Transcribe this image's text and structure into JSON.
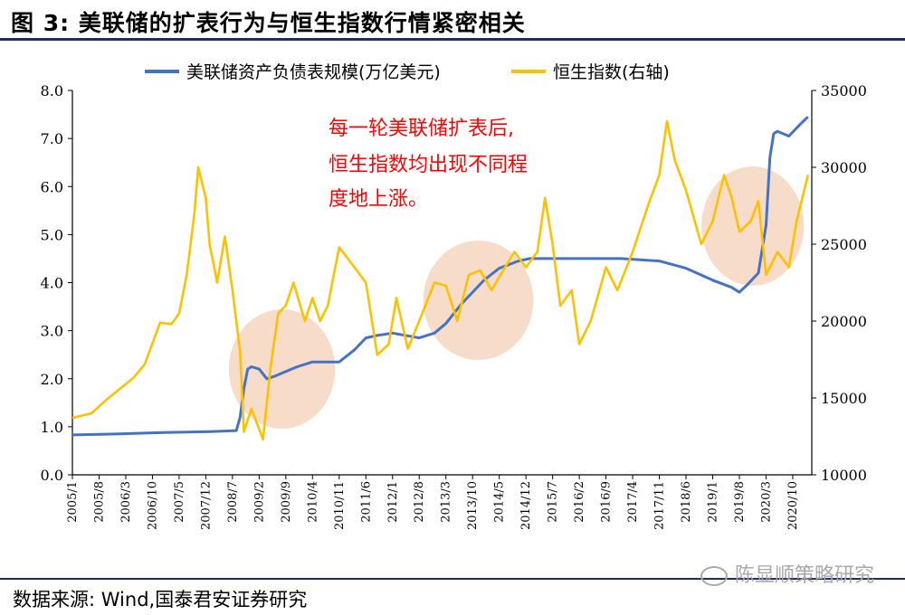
{
  "figure": {
    "title": "图 3: 美联储的扩表行为与恒生指数行情紧密相关",
    "source": "数据来源: Wind,国泰君安证券研究",
    "watermark": "陈显顺策略研究"
  },
  "chart_data": {
    "type": "line",
    "colors": {
      "fed": "#4472c4",
      "hsi": "#ffc000",
      "highlight": "#f4c9ad",
      "annotation": "#ff0000"
    },
    "legend_position": "top",
    "grid": false,
    "y_left": {
      "ylim": [
        0,
        8
      ],
      "ticks": [
        "0.0",
        "1.0",
        "2.0",
        "3.0",
        "4.0",
        "5.0",
        "6.0",
        "7.0",
        "8.0"
      ]
    },
    "y_right": {
      "ylim": [
        10000,
        35000
      ],
      "ticks": [
        "10000",
        "15000",
        "20000",
        "25000",
        "30000",
        "35000"
      ]
    },
    "x_ticks": [
      "2005/1",
      "2005/8",
      "2006/3",
      "2006/10",
      "2007/5",
      "2007/12",
      "2008/7",
      "2009/2",
      "2009/9",
      "2010/4",
      "2010/11",
      "2011/6",
      "2012/1",
      "2012/8",
      "2013/3",
      "2013/10",
      "2014/5",
      "2014/12",
      "2015/7",
      "2016/2",
      "2016/9",
      "2017/4",
      "2017/11",
      "2018/6",
      "2019/1",
      "2019/8",
      "2020/3",
      "2020/10"
    ],
    "annotation": [
      "每一轮美联储扩表后,",
      "恒生指数均出现不同程",
      "度地上涨。"
    ],
    "highlights": [
      {
        "start": "2008/7",
        "end": "2010/9"
      },
      {
        "start": "2012/10",
        "end": "2015/1"
      },
      {
        "start": "2018/11",
        "end": "2020/12"
      }
    ],
    "series": [
      {
        "name": "美联储资产负债表规模(万亿美元)",
        "axis": "left",
        "points": [
          [
            "2005/1",
            0.83
          ],
          [
            "2006/1",
            0.85
          ],
          [
            "2007/1",
            0.88
          ],
          [
            "2008/1",
            0.9
          ],
          [
            "2008/8",
            0.92
          ],
          [
            "2008/9",
            1.2
          ],
          [
            "2008/10",
            1.8
          ],
          [
            "2008/11",
            2.2
          ],
          [
            "2008/12",
            2.25
          ],
          [
            "2009/2",
            2.2
          ],
          [
            "2009/4",
            2.0
          ],
          [
            "2009/6",
            2.05
          ],
          [
            "2009/9",
            2.15
          ],
          [
            "2009/12",
            2.25
          ],
          [
            "2010/4",
            2.35
          ],
          [
            "2010/11",
            2.35
          ],
          [
            "2011/3",
            2.6
          ],
          [
            "2011/6",
            2.85
          ],
          [
            "2011/9",
            2.9
          ],
          [
            "2012/1",
            2.95
          ],
          [
            "2012/8",
            2.85
          ],
          [
            "2012/12",
            2.95
          ],
          [
            "2013/3",
            3.15
          ],
          [
            "2013/7",
            3.55
          ],
          [
            "2013/10",
            3.8
          ],
          [
            "2014/1",
            4.05
          ],
          [
            "2014/5",
            4.3
          ],
          [
            "2014/10",
            4.45
          ],
          [
            "2015/1",
            4.5
          ],
          [
            "2016/1",
            4.5
          ],
          [
            "2017/1",
            4.5
          ],
          [
            "2017/11",
            4.45
          ],
          [
            "2018/6",
            4.3
          ],
          [
            "2019/1",
            4.05
          ],
          [
            "2019/6",
            3.9
          ],
          [
            "2019/8",
            3.8
          ],
          [
            "2019/10",
            3.95
          ],
          [
            "2020/1",
            4.2
          ],
          [
            "2020/3",
            5.2
          ],
          [
            "2020/4",
            6.6
          ],
          [
            "2020/5",
            7.1
          ],
          [
            "2020/6",
            7.15
          ],
          [
            "2020/9",
            7.05
          ],
          [
            "2020/12",
            7.3
          ],
          [
            "2021/2",
            7.45
          ]
        ]
      },
      {
        "name": "恒生指数(右轴)",
        "axis": "right",
        "points": [
          [
            "2005/1",
            13700
          ],
          [
            "2005/6",
            14000
          ],
          [
            "2005/10",
            14900
          ],
          [
            "2006/1",
            15500
          ],
          [
            "2006/5",
            16300
          ],
          [
            "2006/8",
            17200
          ],
          [
            "2006/12",
            19900
          ],
          [
            "2007/3",
            19800
          ],
          [
            "2007/5",
            20500
          ],
          [
            "2007/7",
            23000
          ],
          [
            "2007/9",
            27000
          ],
          [
            "2007/10",
            30000
          ],
          [
            "2007/11",
            29000
          ],
          [
            "2007/12",
            28000
          ],
          [
            "2008/1",
            25000
          ],
          [
            "2008/3",
            22500
          ],
          [
            "2008/5",
            25500
          ],
          [
            "2008/7",
            22000
          ],
          [
            "2008/9",
            18000
          ],
          [
            "2008/10",
            12800
          ],
          [
            "2008/12",
            14300
          ],
          [
            "2009/3",
            12300
          ],
          [
            "2009/5",
            17000
          ],
          [
            "2009/7",
            20500
          ],
          [
            "2009/9",
            21000
          ],
          [
            "2009/11",
            22500
          ],
          [
            "2010/2",
            20000
          ],
          [
            "2010/4",
            21500
          ],
          [
            "2010/6",
            20000
          ],
          [
            "2010/8",
            21000
          ],
          [
            "2010/11",
            24800
          ],
          [
            "2011/3",
            23500
          ],
          [
            "2011/6",
            22500
          ],
          [
            "2011/9",
            17800
          ],
          [
            "2011/12",
            18500
          ],
          [
            "2012/2",
            21500
          ],
          [
            "2012/5",
            18200
          ],
          [
            "2012/8",
            20000
          ],
          [
            "2012/12",
            22500
          ],
          [
            "2013/3",
            22300
          ],
          [
            "2013/6",
            20000
          ],
          [
            "2013/9",
            23000
          ],
          [
            "2013/12",
            23300
          ],
          [
            "2014/3",
            22000
          ],
          [
            "2014/6",
            23300
          ],
          [
            "2014/9",
            24500
          ],
          [
            "2014/12",
            23500
          ],
          [
            "2015/3",
            24500
          ],
          [
            "2015/5",
            28000
          ],
          [
            "2015/7",
            25000
          ],
          [
            "2015/9",
            21000
          ],
          [
            "2015/12",
            22000
          ],
          [
            "2016/2",
            18500
          ],
          [
            "2016/5",
            20000
          ],
          [
            "2016/9",
            23500
          ],
          [
            "2016/12",
            22000
          ],
          [
            "2017/4",
            24500
          ],
          [
            "2017/8",
            27500
          ],
          [
            "2017/11",
            29500
          ],
          [
            "2018/1",
            33000
          ],
          [
            "2018/3",
            30500
          ],
          [
            "2018/6",
            28500
          ],
          [
            "2018/10",
            25000
          ],
          [
            "2019/1",
            26500
          ],
          [
            "2019/4",
            29500
          ],
          [
            "2019/6",
            28000
          ],
          [
            "2019/8",
            25800
          ],
          [
            "2019/11",
            26500
          ],
          [
            "2020/1",
            27800
          ],
          [
            "2020/3",
            23000
          ],
          [
            "2020/6",
            24500
          ],
          [
            "2020/9",
            23500
          ],
          [
            "2020/11",
            26500
          ],
          [
            "2021/1",
            28500
          ],
          [
            "2021/2",
            29500
          ]
        ]
      }
    ]
  }
}
